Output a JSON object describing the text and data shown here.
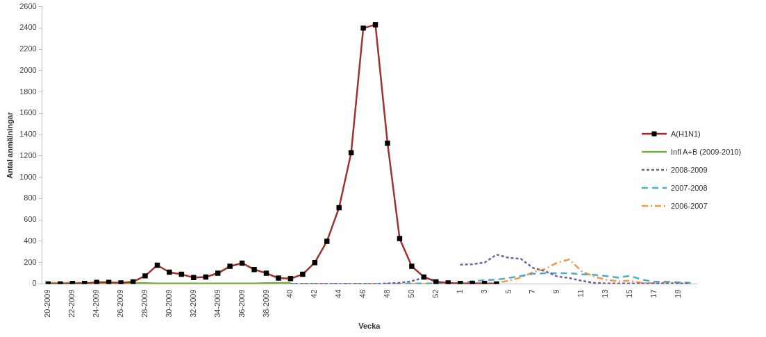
{
  "chart_data": {
    "type": "line",
    "xlabel": "Vecka",
    "ylabel": "Antal anmälningar",
    "categories": [
      "20-2009",
      null,
      "22-2009",
      null,
      "24-2009",
      null,
      "26-2009",
      null,
      "28-2009",
      null,
      "30-2009",
      null,
      "32-2009",
      null,
      "34-2009",
      null,
      "36-2009",
      null,
      "38-2009",
      null,
      "40",
      null,
      "42",
      null,
      "44",
      null,
      "46",
      null,
      "48",
      null,
      "50",
      null,
      "52",
      null,
      "1",
      null,
      "3",
      null,
      "5",
      null,
      "7",
      null,
      "9",
      null,
      "11",
      null,
      "13",
      null,
      "15",
      null,
      "17",
      null,
      "19",
      null
    ],
    "series": [
      {
        "name": "A(H1N1)",
        "color": "#a0322d",
        "marker": "square",
        "line_style": "solid",
        "values": [
          0,
          0,
          5,
          5,
          15,
          15,
          10,
          20,
          75,
          175,
          110,
          90,
          60,
          65,
          100,
          165,
          195,
          135,
          100,
          55,
          50,
          90,
          200,
          400,
          715,
          1230,
          2400,
          2430,
          1320,
          425,
          165,
          65,
          20,
          10,
          5,
          5,
          5,
          0,
          null,
          null,
          null,
          null,
          null,
          null,
          null,
          null,
          null,
          null,
          null,
          null,
          null,
          null,
          null,
          null
        ]
      },
      {
        "name": "Infl A+B (2009-2010)",
        "color": "#77b03e",
        "marker": "none",
        "line_style": "solid",
        "values": [
          10,
          10,
          10,
          10,
          10,
          10,
          10,
          10,
          8,
          5,
          5,
          5,
          5,
          5,
          5,
          5,
          5,
          5,
          8,
          10,
          10,
          null,
          null,
          null,
          null,
          null,
          null,
          null,
          null,
          null,
          null,
          null,
          null,
          null,
          null,
          null,
          null,
          null,
          null,
          null,
          null,
          null,
          null,
          null,
          null,
          null,
          null,
          null,
          null,
          null,
          null,
          null,
          null,
          null
        ]
      },
      {
        "name": "2008-2009",
        "color": "#7060a0",
        "marker": "none",
        "line_style": "dotted",
        "values": [
          null,
          null,
          null,
          null,
          null,
          null,
          null,
          null,
          null,
          null,
          null,
          null,
          null,
          null,
          null,
          null,
          null,
          null,
          null,
          null,
          0,
          0,
          0,
          0,
          0,
          0,
          0,
          0,
          5,
          10,
          25,
          60,
          30,
          null,
          180,
          185,
          200,
          275,
          245,
          235,
          150,
          120,
          70,
          55,
          30,
          10,
          5,
          5,
          5,
          5,
          5,
          5,
          5,
          5
        ]
      },
      {
        "name": "2007-2008",
        "color": "#4bacc6",
        "marker": "none",
        "line_style": "dashed",
        "values": [
          null,
          null,
          null,
          null,
          null,
          null,
          null,
          null,
          null,
          null,
          null,
          null,
          null,
          null,
          null,
          null,
          null,
          null,
          null,
          null,
          0,
          0,
          0,
          0,
          0,
          0,
          0,
          0,
          0,
          0,
          5,
          5,
          5,
          5,
          10,
          25,
          35,
          40,
          55,
          75,
          95,
          100,
          100,
          100,
          90,
          85,
          75,
          60,
          75,
          40,
          20,
          20,
          15,
          10
        ]
      },
      {
        "name": "2006-2007",
        "color": "#f79646",
        "marker": "none",
        "line_style": "dashdot",
        "values": [
          null,
          null,
          null,
          null,
          null,
          null,
          null,
          null,
          null,
          null,
          null,
          null,
          null,
          null,
          null,
          null,
          null,
          null,
          null,
          null,
          0,
          0,
          0,
          0,
          0,
          0,
          0,
          0,
          0,
          0,
          0,
          0,
          0,
          0,
          0,
          5,
          5,
          10,
          30,
          60,
          110,
          140,
          200,
          230,
          120,
          70,
          40,
          25,
          30,
          10,
          5,
          15,
          5,
          0
        ]
      }
    ],
    "ylim": [
      0,
      2600
    ],
    "yticks": [
      0,
      200,
      400,
      600,
      800,
      1000,
      1200,
      1400,
      1600,
      1800,
      2000,
      2200,
      2400,
      2600
    ],
    "grid": false,
    "legend": "right"
  }
}
